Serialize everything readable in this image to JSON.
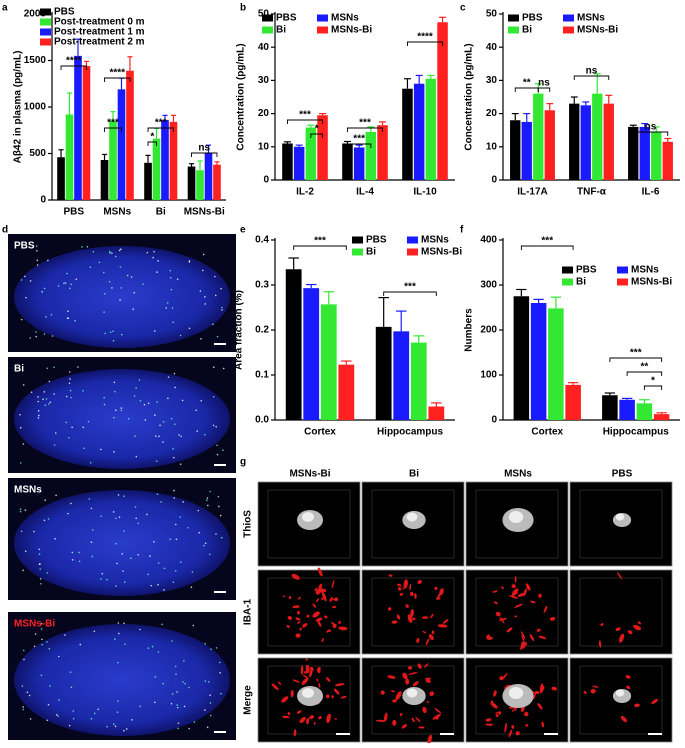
{
  "panel_labels": [
    "a",
    "b",
    "c",
    "d",
    "e",
    "f",
    "g"
  ],
  "chart_data": [
    {
      "type": "bar",
      "y_label": "Aβ42 in plasma (pg/mL)",
      "categories": [
        "PBS",
        "MSNs",
        "Bi",
        "MSNs-Bi"
      ],
      "series": [
        {
          "name": "PBS",
          "color": "#000000",
          "values": [
            460,
            430,
            400,
            360
          ],
          "errors": [
            80,
            60,
            80,
            30
          ]
        },
        {
          "name": "Post-treatment 0 m",
          "color": "#33e833",
          "values": [
            920,
            850,
            660,
            320
          ],
          "errors": [
            230,
            100,
            110,
            100
          ]
        },
        {
          "name": "Post-treatment 1 m",
          "color": "#1a1aff",
          "values": [
            1550,
            1190,
            860,
            510
          ],
          "errors": [
            180,
            120,
            50,
            80
          ]
        },
        {
          "name": "Post-treatment 2 m",
          "color": "#ff2020",
          "values": [
            1440,
            1390,
            840,
            380
          ],
          "errors": [
            50,
            150,
            70,
            30
          ]
        }
      ],
      "ylim": [
        0,
        2000
      ],
      "yticks": [
        0,
        500,
        1000,
        1500,
        2000
      ],
      "annotations": [
        "****",
        "***",
        "****",
        "*",
        "***",
        "ns"
      ]
    },
    {
      "type": "bar",
      "y_label": "Concentration (pg/mL)",
      "categories": [
        "IL-2",
        "IL-4",
        "IL-10"
      ],
      "series": [
        {
          "name": "PBS",
          "color": "#000000",
          "values": [
            11,
            11,
            27.5
          ],
          "errors": [
            0.5,
            0.6,
            3
          ]
        },
        {
          "name": "MSNs",
          "color": "#1a1aff",
          "values": [
            10,
            9.8,
            29
          ],
          "errors": [
            0.5,
            0.7,
            2.5
          ]
        },
        {
          "name": "Bi",
          "color": "#33e833",
          "values": [
            15.8,
            14.5,
            30.5
          ],
          "errors": [
            0.7,
            1.5,
            1
          ]
        },
        {
          "name": "MSNs-Bi",
          "color": "#ff2020",
          "values": [
            19.5,
            16.5,
            47.5
          ],
          "errors": [
            0.5,
            1,
            1.5
          ]
        }
      ],
      "ylim": [
        0,
        50
      ],
      "yticks": [
        0,
        10,
        20,
        30,
        40,
        50
      ],
      "annotations": [
        "***",
        "*",
        "***",
        "***",
        "****"
      ]
    },
    {
      "type": "bar",
      "y_label": "Concentration (pg/mL)",
      "categories": [
        "IL-17A",
        "TNF-α",
        "IL-6"
      ],
      "series": [
        {
          "name": "PBS",
          "color": "#000000",
          "values": [
            18,
            23,
            16
          ],
          "errors": [
            2,
            2,
            0.5
          ]
        },
        {
          "name": "MSNs",
          "color": "#1a1aff",
          "values": [
            17.5,
            22.5,
            16
          ],
          "errors": [
            2.5,
            1,
            1
          ]
        },
        {
          "name": "Bi",
          "color": "#33e833",
          "values": [
            26,
            26,
            14.5
          ],
          "errors": [
            3,
            6,
            1.5
          ]
        },
        {
          "name": "MSNs-Bi",
          "color": "#ff2020",
          "values": [
            21,
            23,
            11.5
          ],
          "errors": [
            2,
            2.5,
            1
          ]
        }
      ],
      "ylim": [
        0,
        50
      ],
      "yticks": [
        0,
        10,
        20,
        30,
        40,
        50
      ],
      "annotations": [
        "**",
        "ns",
        "ns",
        "ns"
      ]
    },
    {
      "type": "bar",
      "y_label": "Area fraction (%)",
      "categories": [
        "Cortex",
        "Hippocampus"
      ],
      "series": [
        {
          "name": "PBS",
          "color": "#000000",
          "values": [
            0.335,
            0.207
          ],
          "errors": [
            0.025,
            0.065
          ]
        },
        {
          "name": "MSNs",
          "color": "#1a1aff",
          "values": [
            0.293,
            0.197
          ],
          "errors": [
            0.008,
            0.045
          ]
        },
        {
          "name": "Bi",
          "color": "#33e833",
          "values": [
            0.257,
            0.172
          ],
          "errors": [
            0.028,
            0.015
          ]
        },
        {
          "name": "MSNs-Bi",
          "color": "#ff2020",
          "values": [
            0.123,
            0.03
          ],
          "errors": [
            0.008,
            0.008
          ]
        }
      ],
      "ylim": [
        0,
        0.4
      ],
      "yticks": [
        {
          "value": 0,
          "label": "0.0"
        },
        0.1,
        0.2,
        0.3,
        0.4
      ],
      "annotations": [
        "***",
        "***"
      ]
    },
    {
      "type": "bar",
      "y_label": "Numbers",
      "categories": [
        "Cortex",
        "Hippocampus"
      ],
      "series": [
        {
          "name": "PBS",
          "color": "#000000",
          "values": [
            275,
            55
          ],
          "errors": [
            15,
            5
          ]
        },
        {
          "name": "MSNs",
          "color": "#1a1aff",
          "values": [
            260,
            45
          ],
          "errors": [
            8,
            3
          ]
        },
        {
          "name": "Bi",
          "color": "#33e833",
          "values": [
            248,
            37
          ],
          "errors": [
            25,
            8
          ]
        },
        {
          "name": "MSNs-Bi",
          "color": "#ff2020",
          "values": [
            78,
            13
          ],
          "errors": [
            5,
            3
          ]
        }
      ],
      "ylim": [
        0,
        400
      ],
      "yticks": [
        0,
        100,
        200,
        300,
        400
      ],
      "annotations": [
        "***",
        "***",
        "**",
        "*"
      ]
    }
  ],
  "brain_images": {
    "labels": [
      "PBS",
      "Bi",
      "MSNs",
      "MSNs-Bi"
    ]
  },
  "confocal_images": {
    "columns": [
      "MSNs-Bi",
      "Bi",
      "MSNs",
      "PBS"
    ],
    "rows": [
      "ThioS",
      "IBA-1",
      "Merge"
    ]
  }
}
